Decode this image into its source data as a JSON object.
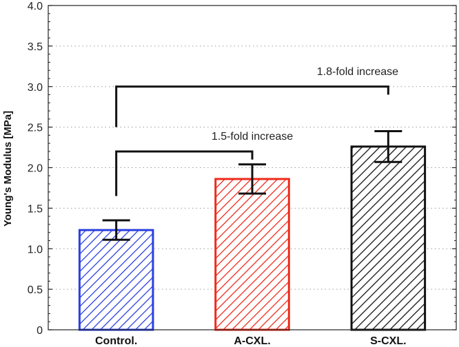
{
  "chart_data": {
    "type": "bar",
    "categories": [
      "Control.",
      "A-CXL.",
      "S-CXL."
    ],
    "values": [
      1.23,
      1.86,
      2.26
    ],
    "errors": [
      0.12,
      0.18,
      0.19
    ],
    "colors": [
      "#2b3fe0",
      "#ee2a1b",
      "#111111"
    ],
    "fill_pattern": "diagonal-hatch",
    "ylabel": "Young's Modulus [MPa]",
    "xlabel": "",
    "title": "",
    "ylim": [
      0,
      4.0
    ],
    "yticks": [
      0,
      0.5,
      1.0,
      1.5,
      2.0,
      2.5,
      3.0,
      3.5,
      4.0
    ],
    "ytick_labels": [
      "0",
      "0.5",
      "1.0",
      "1.5",
      "2.0",
      "2.5",
      "3.0",
      "3.5",
      "4.0"
    ],
    "grid": "horizontal-dotted",
    "annotations": [
      {
        "text": "1.5-fold increase",
        "from": "Control.",
        "to": "A-CXL.",
        "bracket_y": 2.2,
        "left_drop_to": 1.65,
        "right_drop_to": 2.1
      },
      {
        "text": "1.8-fold increase",
        "from": "Control.",
        "to": "S-CXL.",
        "bracket_y": 3.0,
        "left_drop_to": 2.5,
        "right_drop_to": 2.9
      }
    ]
  }
}
